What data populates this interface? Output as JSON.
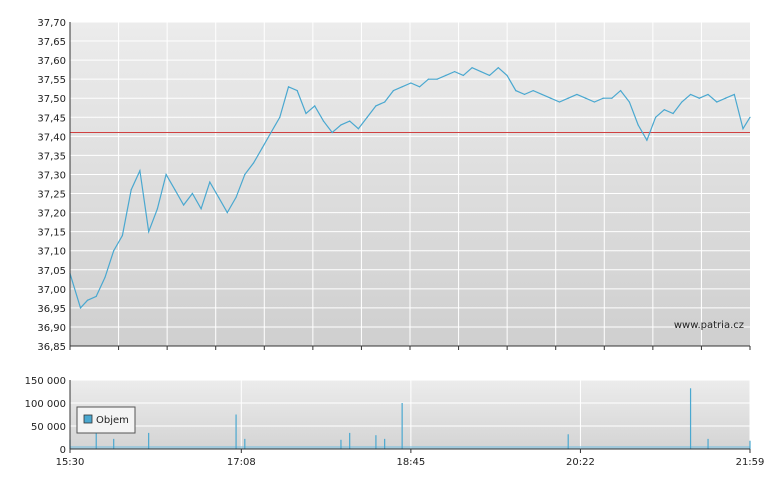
{
  "chart_data": [
    {
      "type": "line",
      "title": "",
      "xlabel": "",
      "ylabel": "",
      "ylim": [
        36.85,
        37.7
      ],
      "y_ticks": [
        "37,70",
        "37,65",
        "37,60",
        "37,55",
        "37,50",
        "37,45",
        "37,40",
        "37,35",
        "37,30",
        "37,25",
        "37,20",
        "37,15",
        "37,10",
        "37,05",
        "37,00",
        "36,95",
        "36,90",
        "36,85"
      ],
      "grid": true,
      "reference_line": {
        "value": 37.41,
        "color": "#d04040"
      },
      "watermark": "www.patria.cz",
      "series": [
        {
          "color": "#4aa8d0",
          "x": [
            "15:30",
            "15:36",
            "15:40",
            "15:45",
            "15:50",
            "15:55",
            "16:00",
            "16:05",
            "16:10",
            "16:15",
            "16:20",
            "16:25",
            "16:30",
            "16:35",
            "16:40",
            "16:45",
            "16:50",
            "16:55",
            "17:00",
            "17:05",
            "17:10",
            "17:15",
            "17:20",
            "17:25",
            "17:30",
            "17:35",
            "17:40",
            "17:45",
            "17:50",
            "17:55",
            "18:00",
            "18:05",
            "18:10",
            "18:15",
            "18:20",
            "18:25",
            "18:30",
            "18:35",
            "18:40",
            "18:45",
            "18:50",
            "18:55",
            "19:00",
            "19:05",
            "19:10",
            "19:15",
            "19:20",
            "19:25",
            "19:30",
            "19:35",
            "19:40",
            "19:45",
            "19:50",
            "19:55",
            "20:00",
            "20:05",
            "20:10",
            "20:15",
            "20:20",
            "20:25",
            "20:30",
            "20:35",
            "20:40",
            "20:45",
            "20:50",
            "20:55",
            "21:00",
            "21:05",
            "21:10",
            "21:15",
            "21:20",
            "21:25",
            "21:30",
            "21:35",
            "21:40",
            "21:45",
            "21:50",
            "21:55",
            "21:59"
          ],
          "values": [
            37.04,
            36.95,
            36.97,
            36.98,
            37.03,
            37.1,
            37.14,
            37.26,
            37.31,
            37.15,
            37.21,
            37.3,
            37.26,
            37.22,
            37.25,
            37.21,
            37.28,
            37.24,
            37.2,
            37.24,
            37.3,
            37.33,
            37.37,
            37.41,
            37.45,
            37.53,
            37.52,
            37.46,
            37.48,
            37.44,
            37.41,
            37.43,
            37.44,
            37.42,
            37.45,
            37.48,
            37.49,
            37.52,
            37.53,
            37.54,
            37.53,
            37.55,
            37.55,
            37.56,
            37.57,
            37.56,
            37.58,
            37.57,
            37.56,
            37.58,
            37.56,
            37.52,
            37.51,
            37.52,
            37.51,
            37.5,
            37.49,
            37.5,
            37.51,
            37.5,
            37.49,
            37.5,
            37.5,
            37.52,
            37.49,
            37.43,
            37.39,
            37.45,
            37.47,
            37.46,
            37.49,
            37.51,
            37.5,
            37.51,
            37.49,
            37.5,
            37.51,
            37.42,
            37.45
          ]
        }
      ]
    },
    {
      "type": "bar",
      "title": "",
      "xlabel": "",
      "ylabel": "",
      "ylim": [
        0,
        150000
      ],
      "y_ticks": [
        "150 000",
        "100 000",
        "50 000",
        "0"
      ],
      "x_ticks": [
        "15:30",
        "17:08",
        "18:45",
        "20:22",
        "21:59"
      ],
      "legend": {
        "label": "Objem",
        "placement": "left"
      },
      "grid": true,
      "series": [
        {
          "name": "Objem",
          "color": "#4aa8d0",
          "x": [
            "15:30",
            "15:45",
            "15:55",
            "16:15",
            "17:05",
            "17:10",
            "18:05",
            "18:10",
            "18:25",
            "18:30",
            "18:40",
            "20:15",
            "21:25",
            "21:35",
            "21:59"
          ],
          "values": [
            20000,
            38000,
            22000,
            35000,
            75000,
            22000,
            20000,
            35000,
            30000,
            22000,
            100000,
            32000,
            132000,
            22000,
            18000
          ]
        }
      ]
    }
  ]
}
